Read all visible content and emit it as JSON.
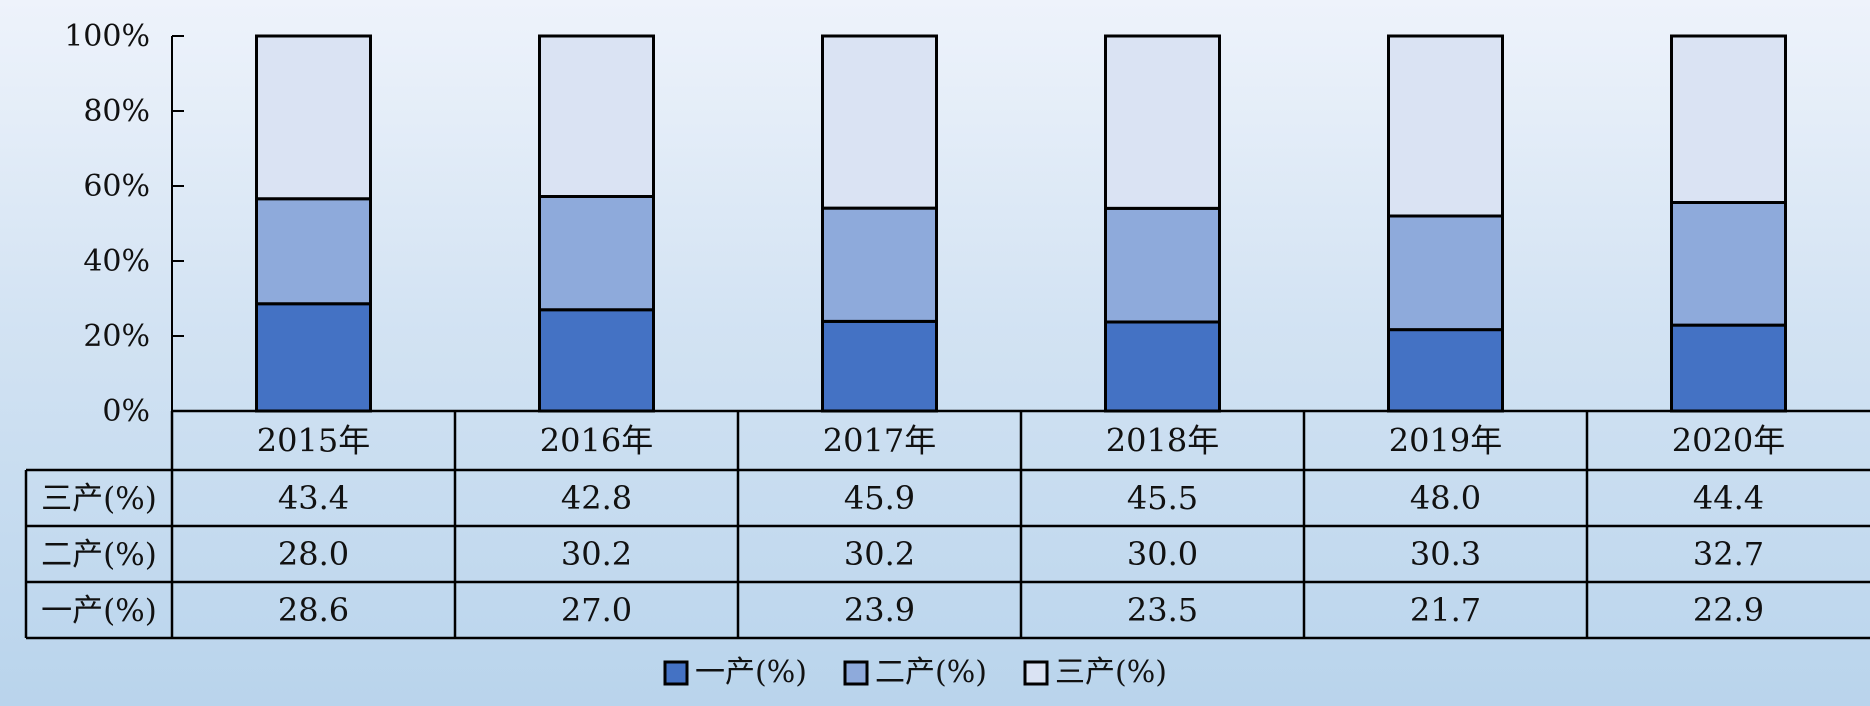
{
  "chart_data": {
    "type": "bar",
    "stacked": true,
    "percent_stacked": true,
    "categories": [
      "2015年",
      "2016年",
      "2017年",
      "2018年",
      "2019年",
      "2020年"
    ],
    "series": [
      {
        "name": "一产(%)",
        "values": [
          28.6,
          27.0,
          23.9,
          23.5,
          21.7,
          22.9
        ],
        "labels": [
          "28.6",
          "27.0",
          "23.9",
          "23.5",
          "21.7",
          "22.9"
        ],
        "color": "#4472c4"
      },
      {
        "name": "二产(%)",
        "values": [
          28.0,
          30.2,
          30.2,
          30.0,
          30.3,
          32.7
        ],
        "labels": [
          "28.0",
          "30.2",
          "30.2",
          "30.0",
          "30.3",
          "32.7"
        ],
        "color": "#8eaadb"
      },
      {
        "name": "三产(%)",
        "values": [
          43.4,
          42.8,
          45.9,
          45.5,
          48.0,
          44.4
        ],
        "labels": [
          "43.4",
          "42.8",
          "45.9",
          "45.5",
          "48.0",
          "44.4"
        ],
        "color": "#dae3f3"
      }
    ],
    "yticks": [
      "0%",
      "20%",
      "40%",
      "60%",
      "80%",
      "100%"
    ],
    "ylim": [
      0,
      100
    ],
    "table_row_order": [
      "三产(%)",
      "二产(%)",
      "一产(%)"
    ],
    "legend_position": "bottom-center",
    "grid": false
  }
}
